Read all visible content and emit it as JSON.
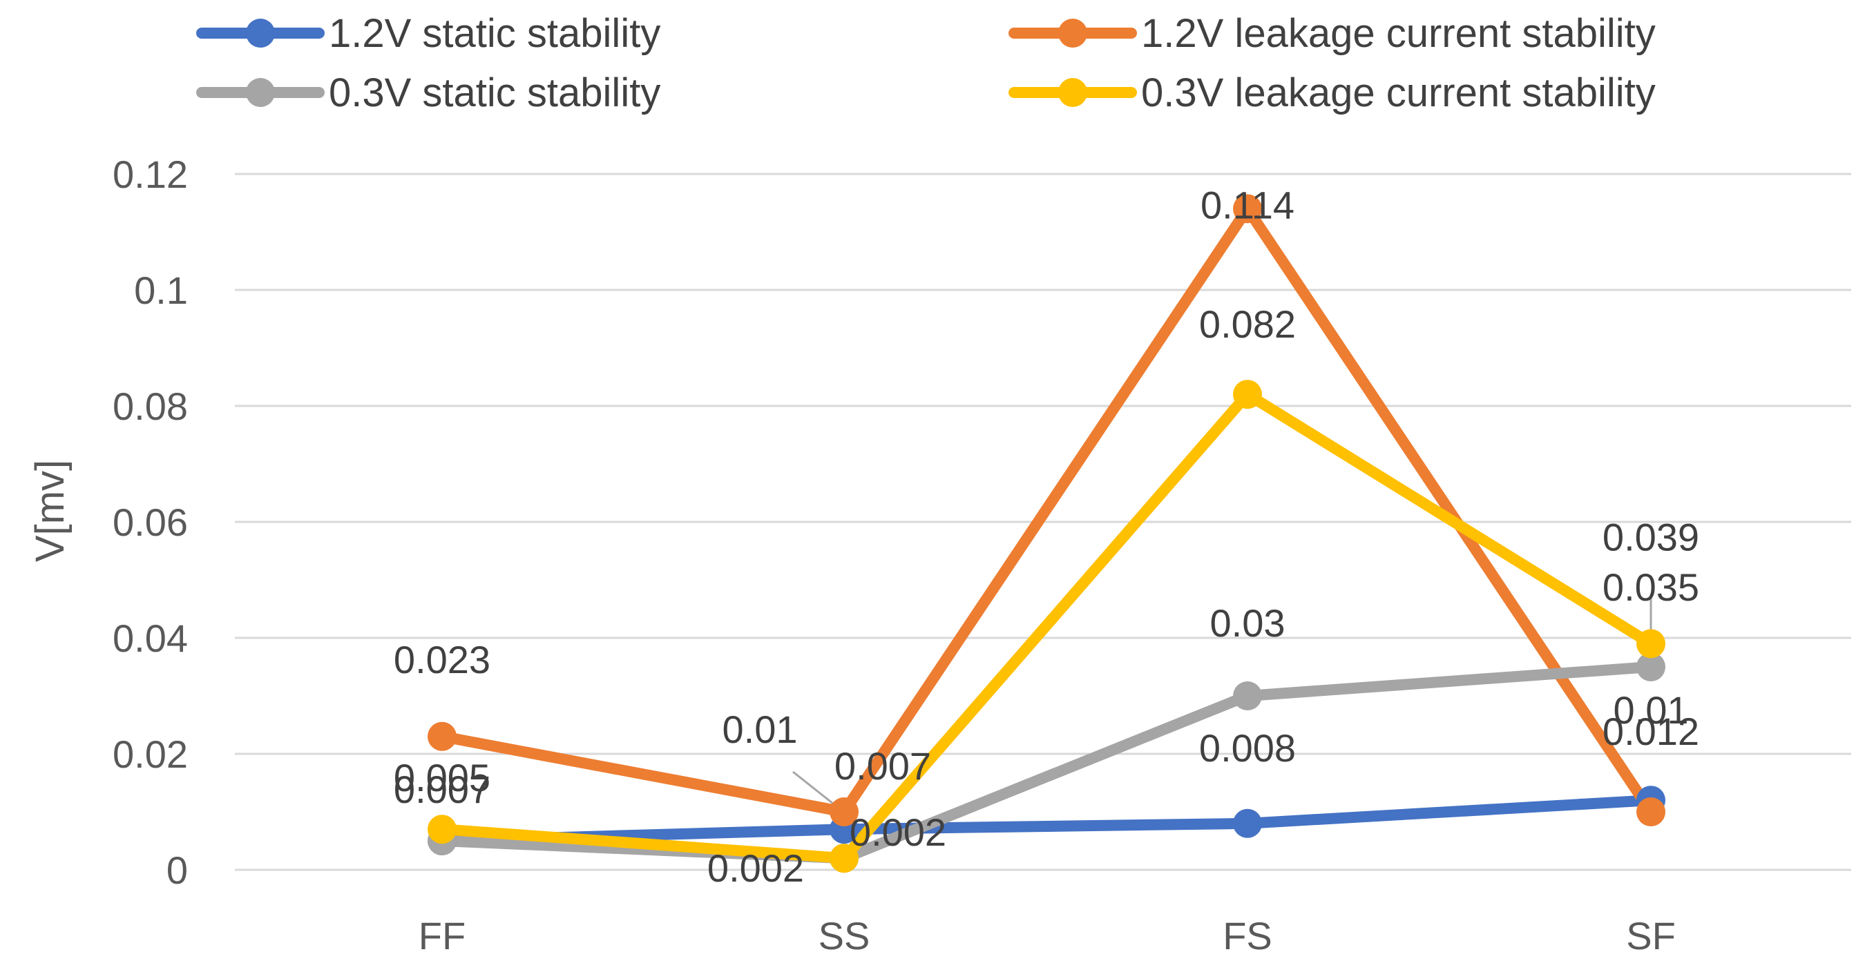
{
  "chart_data": {
    "type": "line",
    "title": "",
    "xlabel": "",
    "ylabel": "V[mv]",
    "ylim": [
      0,
      0.12
    ],
    "yticks": [
      0,
      0.02,
      0.04,
      0.06,
      0.08,
      0.1,
      0.12
    ],
    "ytick_labels": [
      "0",
      "0.02",
      "0.04",
      "0.06",
      "0.08",
      "0.1",
      "0.12"
    ],
    "categories": [
      "FF",
      "SS",
      "FS",
      "SF"
    ],
    "grid": true,
    "legend_position": "top",
    "series": [
      {
        "name": "1.2V static stability",
        "color": "#4472c4",
        "values": [
          0.005,
          0.007,
          0.008,
          0.012
        ],
        "labels": [
          "0.005",
          "0.007",
          "0.008",
          "0.012"
        ]
      },
      {
        "name": "1.2V leakage current stability",
        "color": "#ed7d31",
        "values": [
          0.023,
          0.01,
          0.114,
          0.01
        ],
        "labels": [
          "0.023",
          "0.01",
          "0.114",
          "0.01"
        ]
      },
      {
        "name": "0.3V static stability",
        "color": "#a5a5a5",
        "values": [
          0.005,
          0.002,
          0.03,
          0.035
        ],
        "labels": [
          "",
          "0.002",
          "0.03",
          "0.035"
        ]
      },
      {
        "name": "0.3V leakage current stability",
        "color": "#ffc000",
        "values": [
          0.007,
          0.002,
          0.082,
          0.039
        ],
        "labels": [
          "0.007",
          "0.002",
          "0.082",
          "0.039"
        ]
      }
    ]
  }
}
